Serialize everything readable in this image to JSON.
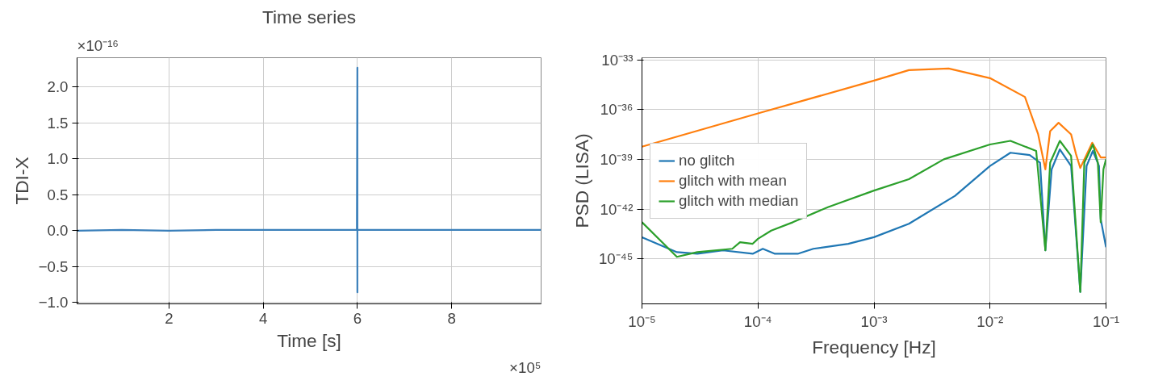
{
  "chart_data": [
    {
      "type": "line",
      "title": "Time series",
      "xlabel": "Time [s]",
      "ylabel": "TDI-X",
      "annotations": [
        "×10⁻¹⁶",
        "×10⁵"
      ],
      "grid": true,
      "legend": false,
      "xlim": [
        0.05,
        9.9
      ],
      "ylim": [
        -1.02,
        2.41
      ],
      "xticks": [
        2,
        4,
        6,
        8
      ],
      "yticks": [
        {
          "value": -1,
          "label": "−1.0"
        },
        {
          "value": -0.5,
          "label": "−0.5"
        },
        {
          "value": 0,
          "label": "0.0"
        },
        {
          "value": 0.5,
          "label": "0.5"
        },
        {
          "value": 1,
          "label": "1.0"
        },
        {
          "value": 1.5,
          "label": "1.5"
        },
        {
          "value": 2,
          "label": "2.0"
        }
      ],
      "series": [
        {
          "color": "#3a7fba",
          "x": [
            0.05,
            1,
            2,
            3,
            4,
            5,
            5.99,
            6.0,
            6.0,
            6.0,
            6.01,
            7,
            8,
            9,
            9.9
          ],
          "values": [
            0,
            0.01,
            0,
            0.01,
            0.01,
            0.01,
            0.01,
            2.27,
            -0.86,
            0.01,
            0.01,
            0.01,
            0.01,
            0.01,
            0.01
          ]
        }
      ]
    },
    {
      "type": "line",
      "xlabel": "Frequency [Hz]",
      "ylabel": "PSD (LISA)",
      "log": "xy",
      "grid": true,
      "legend": "left",
      "xlim": [
        1e-05,
        0.1
      ],
      "ylim": [
        1.9e-48,
        1.35e-33
      ],
      "xticks": [
        {
          "value": 1e-05,
          "label": "10⁻⁵"
        },
        {
          "value": 0.0001,
          "label": "10⁻⁴"
        },
        {
          "value": 0.001,
          "label": "10⁻³"
        },
        {
          "value": 0.01,
          "label": "10⁻²"
        },
        {
          "value": 0.1,
          "label": "10⁻¹"
        }
      ],
      "yticks": [
        {
          "value": 1e-45,
          "label": "10⁻⁴⁵"
        },
        {
          "value": 1e-42,
          "label": "10⁻⁴²"
        },
        {
          "value": 1e-39,
          "label": "10⁻³⁹"
        },
        {
          "value": 1e-36,
          "label": "10⁻³⁶"
        },
        {
          "value": 1e-33,
          "label": "10⁻³³"
        }
      ],
      "series": [
        {
          "name": "no glitch",
          "color": "#1f77b4",
          "x": [
            1e-05,
            2e-05,
            3e-05,
            5e-05,
            9e-05,
            0.00011,
            0.00014,
            0.00022,
            0.0003,
            0.0006,
            0.001,
            0.002,
            0.005,
            0.01,
            0.015,
            0.022,
            0.027,
            0.03,
            0.034,
            0.04,
            0.05,
            0.06,
            0.068,
            0.077,
            0.087,
            0.09,
            0.1
          ],
          "values": [
            2e-44,
            2.5e-45,
            2e-45,
            3.2e-45,
            2e-45,
            4e-45,
            2e-45,
            2e-45,
            4e-45,
            7.9e-45,
            2e-44,
            1.3e-43,
            6.3e-42,
            4e-40,
            2.5e-39,
            1.8e-39,
            6.3e-40,
            3.2e-45,
            2.5e-40,
            4e-39,
            4e-40,
            1e-47,
            4e-40,
            3.2e-39,
            4e-40,
            2.5e-43,
            5e-45
          ]
        },
        {
          "name": "glitch with mean",
          "color": "#ff7f0e",
          "x": [
            1e-05,
            0.0001,
            0.001,
            0.002,
            0.0044,
            0.01,
            0.02,
            0.026,
            0.03,
            0.033,
            0.039,
            0.05,
            0.055,
            0.06,
            0.076,
            0.09,
            0.1
          ],
          "values": [
            5.8e-39,
            5.9e-37,
            5.6e-35,
            2.4e-34,
            3e-34,
            7.9e-35,
            5.8e-36,
            3.2e-38,
            2.5e-40,
            5e-38,
            1.6e-37,
            3.2e-38,
            2.2e-39,
            3e-40,
            1e-38,
            1.3e-39,
            1.3e-39
          ]
        },
        {
          "name": "glitch with median",
          "color": "#2ca02c",
          "x": [
            1e-05,
            2e-05,
            3e-05,
            6e-05,
            7e-05,
            9e-05,
            0.0001,
            0.00013,
            0.0002,
            0.0004,
            0.001,
            0.002,
            0.004,
            0.01,
            0.015,
            0.025,
            0.03,
            0.033,
            0.04,
            0.05,
            0.06,
            0.065,
            0.077,
            0.085,
            0.09,
            0.095,
            0.1
          ],
          "values": [
            1.6e-43,
            1.3e-45,
            2.5e-45,
            4e-45,
            1e-44,
            8e-45,
            1.6e-44,
            5e-44,
            1.6e-43,
            1.3e-42,
            1.3e-41,
            6.3e-41,
            1e-39,
            7.9e-39,
            1.3e-38,
            3.2e-39,
            3.2e-45,
            6.3e-40,
            1.3e-38,
            1.6e-39,
            1e-47,
            6.3e-40,
            7.9e-39,
            6.3e-40,
            1.6e-43,
            2.5e-40,
            1e-39
          ]
        }
      ]
    }
  ]
}
